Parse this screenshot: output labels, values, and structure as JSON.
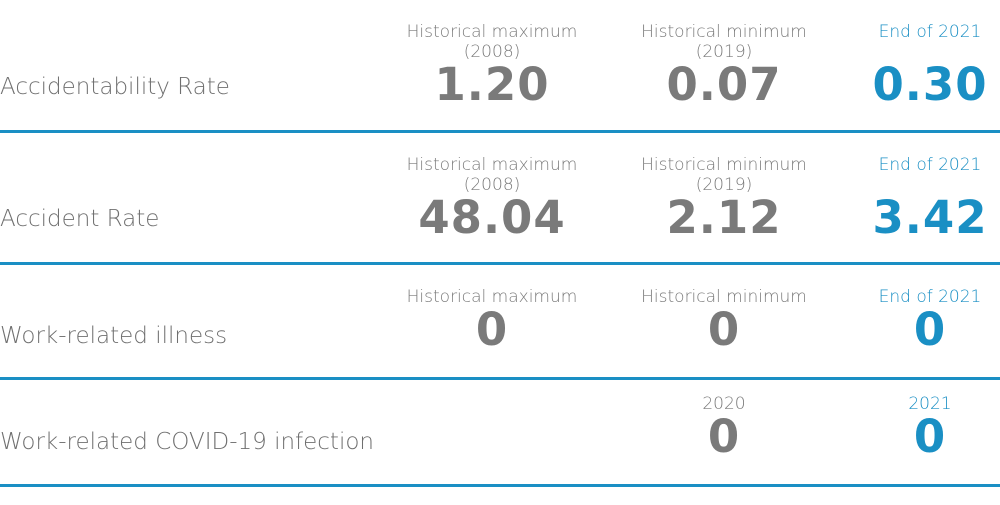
{
  "rows": [
    {
      "label": "Accidentability Rate",
      "max_caption": "Historical maximum",
      "max_year": "(2008)",
      "max_value": "1.20",
      "min_caption": "Historical minimum",
      "min_year": "(2019)",
      "min_value": "0.07",
      "end_caption": "End of 2021",
      "end_value": "0.30"
    },
    {
      "label": "Accident Rate",
      "max_caption": "Historical maximum",
      "max_year": "(2008)",
      "max_value": "48.04",
      "min_caption": "Historical minimum",
      "min_year": "(2019)",
      "min_value": "2.12",
      "end_caption": "End of 2021",
      "end_value": "3.42"
    },
    {
      "label": "Work-related illness",
      "max_caption": "Historical maximum",
      "max_value": "0",
      "min_caption": "Historical minimum",
      "min_value": "0",
      "end_caption": "End of 2021",
      "end_value": "0"
    },
    {
      "label": "Work-related COVID-19 infection",
      "col2_caption": "2020",
      "col2_value": "0",
      "col3_caption": "2021",
      "col3_value": "0"
    }
  ],
  "colors": {
    "accent": "#1a8fc4",
    "gray_text": "#7a7a7a",
    "label_text": "#6f6f6f"
  }
}
